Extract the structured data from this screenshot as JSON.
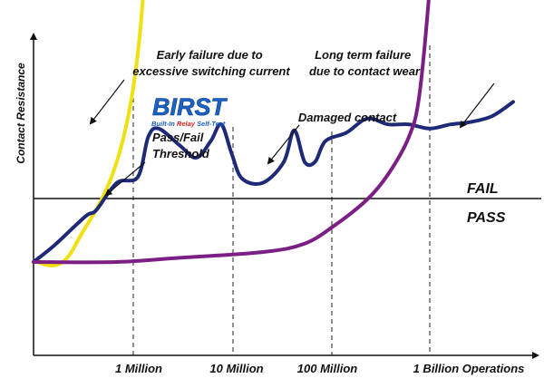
{
  "chart_data": {
    "type": "line",
    "ylabel": "Contact Resistance",
    "xlabel": "",
    "x_ticks": [
      "1 Million",
      "10 Million",
      "100 Million",
      "1 Billion Operations"
    ],
    "x_scale": "log",
    "grid": "dashed vertical lines at tick positions",
    "threshold": {
      "label": "Pass/Fail\nThreshold",
      "above_label": "FAIL",
      "below_label": "PASS"
    },
    "series": [
      {
        "color": "#f0e010",
        "points": [
          [
            0,
            0
          ],
          [
            2,
            0.2
          ],
          [
            5,
            2.5
          ],
          [
            6.5,
            10
          ]
        ]
      },
      {
        "color": "#1e2a78",
        "points": [
          [
            0,
            0
          ],
          [
            1,
            0.2
          ],
          [
            2.5,
            0.55
          ],
          [
            3,
            0.62
          ],
          [
            4,
            0.95
          ],
          [
            5,
            1.02
          ],
          [
            5.5,
            1.5
          ],
          [
            6,
            1.6
          ],
          [
            7,
            1.4
          ],
          [
            7.8,
            1.25
          ],
          [
            8.5,
            1.45
          ],
          [
            9,
            1.65
          ],
          [
            9.5,
            1.3
          ],
          [
            10,
            1.0
          ],
          [
            11,
            0.95
          ],
          [
            12,
            1.2
          ],
          [
            12.5,
            1.58
          ],
          [
            13,
            1.2
          ],
          [
            13.5,
            1.2
          ],
          [
            14,
            1.45
          ],
          [
            15,
            1.55
          ],
          [
            16,
            1.72
          ],
          [
            17,
            1.65
          ],
          [
            18,
            1.65
          ],
          [
            19,
            1.6
          ],
          [
            20,
            1.65
          ],
          [
            21,
            1.68
          ],
          [
            22,
            1.75
          ],
          [
            23,
            1.92
          ]
        ]
      },
      {
        "color": "#7b1f84",
        "points": [
          [
            0,
            0
          ],
          [
            4,
            0
          ],
          [
            7,
            0.05
          ],
          [
            11,
            0.12
          ],
          [
            13,
            0.22
          ],
          [
            14.5,
            0.45
          ],
          [
            16,
            0.75
          ],
          [
            17,
            1.05
          ],
          [
            18,
            1.5
          ],
          [
            18.5,
            2
          ],
          [
            19,
            3.3
          ],
          [
            19.3,
            4.5
          ],
          [
            19.6,
            6
          ],
          [
            20,
            9
          ],
          [
            20.3,
            12
          ]
        ]
      }
    ],
    "annotations": [
      "Early failure due to\nexcessive switching current",
      "Long term failure\ndue to contact wear",
      "Damaged contact"
    ]
  },
  "logo": {
    "text": "BIRST",
    "subtitle": "Built-In Relay Self-Test",
    "sub_blue1": "Built-In ",
    "sub_red": "Relay",
    "sub_blue2": " Self-Test",
    "colors": {
      "blue": "#1b62c4",
      "red": "#d9241c"
    }
  }
}
